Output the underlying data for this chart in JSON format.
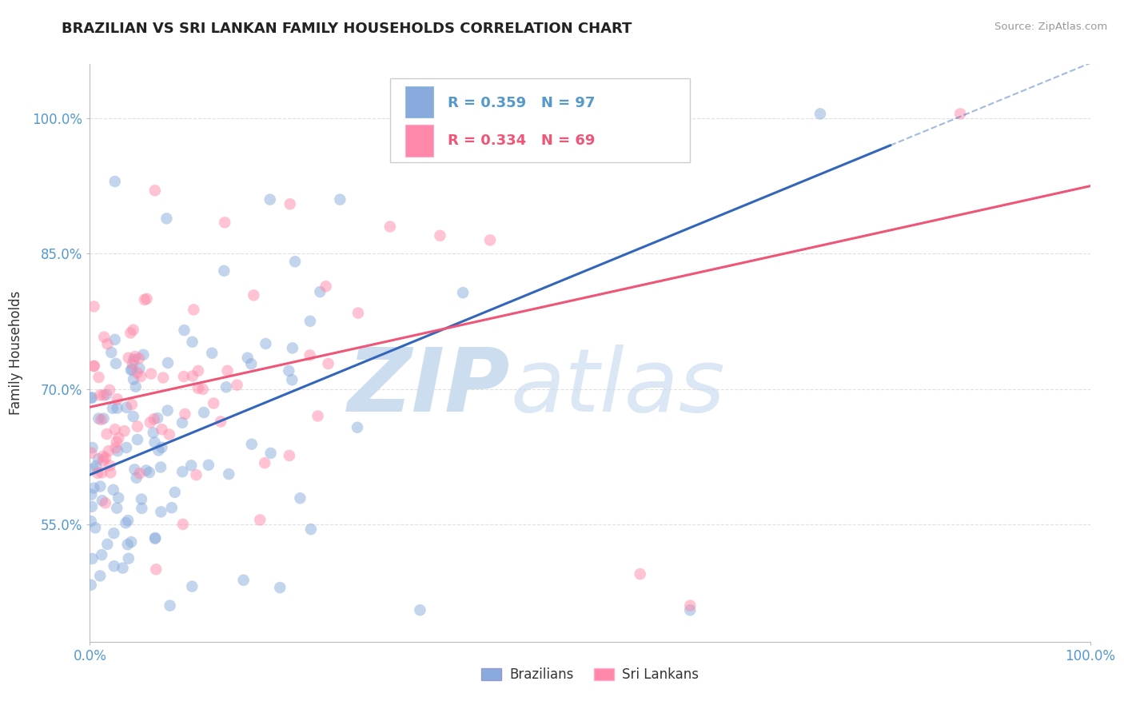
{
  "title": "BRAZILIAN VS SRI LANKAN FAMILY HOUSEHOLDS CORRELATION CHART",
  "source": "Source: ZipAtlas.com",
  "ylabel": "Family Households",
  "xlim": [
    0.0,
    1.0
  ],
  "ylim": [
    0.42,
    1.06
  ],
  "yticks": [
    0.55,
    0.7,
    0.85,
    1.0
  ],
  "ytick_labels": [
    "55.0%",
    "70.0%",
    "85.0%",
    "100.0%"
  ],
  "xtick_labels": [
    "0.0%",
    "100.0%"
  ],
  "brazilian_R": 0.359,
  "brazilian_N": 97,
  "srilankan_R": 0.334,
  "srilankan_N": 69,
  "blue_color": "#88AADD",
  "pink_color": "#FF88AA",
  "blue_line_color": "#3366BB",
  "pink_line_color": "#EE5577",
  "watermark_zip": "ZIP",
  "watermark_atlas": "atlas",
  "watermark_color": "#CCDDF0",
  "background_color": "#FFFFFF",
  "title_fontsize": 13,
  "legend_fontsize": 13,
  "axis_label_color": "#5599CC",
  "grid_color": "#DDDDDD",
  "seed": 12,
  "dot_size": 110,
  "dot_alpha": 0.5,
  "blue_line_x0": 0.0,
  "blue_line_y0": 0.605,
  "blue_line_x1": 0.8,
  "blue_line_y1": 0.97,
  "pink_line_x0": 0.0,
  "pink_line_y0": 0.68,
  "pink_line_x1": 1.0,
  "pink_line_y1": 0.925
}
